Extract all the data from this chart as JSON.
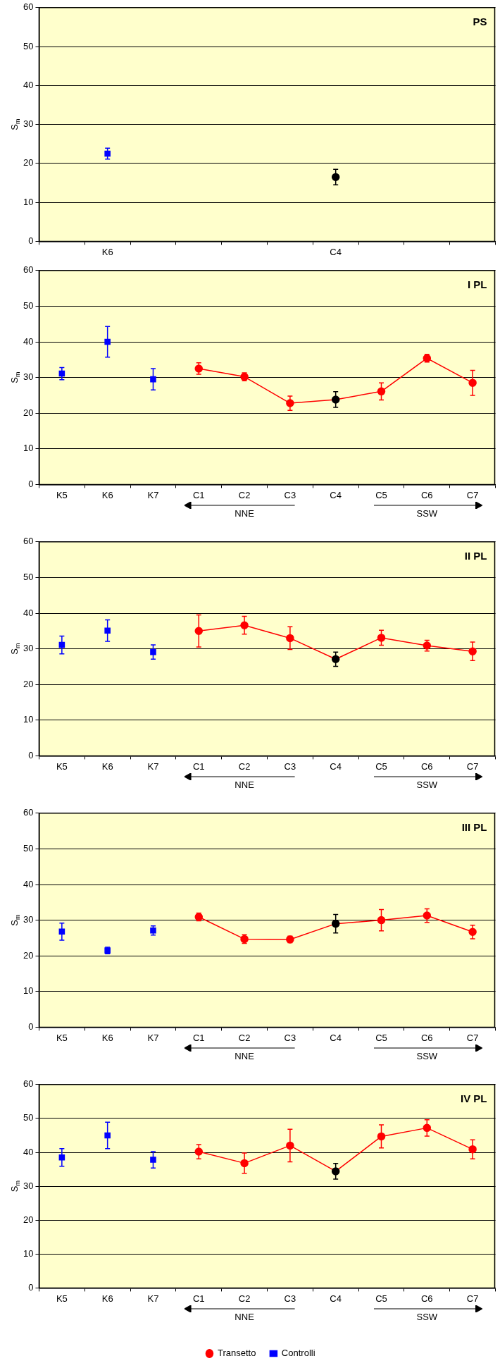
{
  "chart_data": [
    {
      "type": "scatter",
      "title": "PS",
      "ylabel": "S$_{m}$",
      "categories": [
        null,
        "K6",
        null,
        null,
        null,
        null,
        "C4",
        null,
        null,
        null
      ],
      "ylim": [
        0,
        60
      ],
      "yticks": [
        0,
        10,
        20,
        30,
        40,
        50,
        60
      ],
      "grid": "y",
      "series": [
        {
          "marker": "square",
          "color": "#0000ff",
          "values": [
            null,
            22.5,
            null,
            null,
            null,
            null,
            null,
            null,
            null,
            null
          ],
          "errors": [
            null,
            1.4,
            null,
            null,
            null,
            null,
            null,
            null,
            null,
            null
          ]
        },
        {
          "marker": "circle",
          "color": "#000000",
          "values": [
            null,
            null,
            null,
            null,
            null,
            null,
            16.5,
            null,
            null,
            null
          ],
          "errors": [
            null,
            null,
            null,
            null,
            null,
            null,
            2,
            null,
            null,
            null
          ]
        }
      ]
    },
    {
      "type": "line",
      "title": "I PL",
      "ylabel": "S$_{m}$",
      "categories": [
        "K5",
        "K6",
        "K7",
        "C1",
        "C2",
        "C3",
        "C4",
        "C5",
        "C6",
        "C7"
      ],
      "ylim": [
        0,
        60
      ],
      "yticks": [
        0,
        10,
        20,
        30,
        40,
        50,
        60
      ],
      "grid": "y",
      "annotations": [
        "NNE",
        "SSW"
      ],
      "series": [
        {
          "type": "scatter",
          "marker": "square",
          "color": "#0000ff",
          "values": [
            31.1,
            40,
            29.5,
            null,
            null,
            null,
            null,
            null,
            null,
            null
          ],
          "errors": [
            1.7,
            4.3,
            3,
            null,
            null,
            null,
            null,
            null,
            null,
            null
          ]
        },
        {
          "marker": "circle",
          "line_style": "solid",
          "color": "#ff0000",
          "colors": [
            null,
            null,
            null,
            "#ff0000",
            "#ff0000",
            "#ff0000",
            "#000000",
            "#ff0000",
            "#ff0000",
            "#ff0000"
          ],
          "values": [
            null,
            null,
            null,
            32.5,
            30.2,
            22.8,
            23.8,
            26.1,
            35.4,
            28.5
          ],
          "errors": [
            null,
            null,
            null,
            1.6,
            1.1,
            2,
            2.2,
            2.4,
            1.1,
            3.5
          ]
        }
      ]
    },
    {
      "type": "line",
      "title": "II PL",
      "ylabel": "S$_{m}$",
      "categories": [
        "K5",
        "K6",
        "K7",
        "C1",
        "C2",
        "C3",
        "C4",
        "C5",
        "C6",
        "C7"
      ],
      "ylim": [
        0,
        60
      ],
      "yticks": [
        0,
        10,
        20,
        30,
        40,
        50,
        60
      ],
      "grid": "y",
      "annotations": [
        "NNE",
        "SSW"
      ],
      "series": [
        {
          "type": "scatter",
          "marker": "square",
          "color": "#0000ff",
          "values": [
            31.1,
            35.1,
            29.1,
            null,
            null,
            null,
            null,
            null,
            null,
            null
          ],
          "errors": [
            2.5,
            3,
            2,
            null,
            null,
            null,
            null,
            null,
            null,
            null
          ]
        },
        {
          "marker": "circle",
          "line_style": "solid",
          "color": "#ff0000",
          "colors": [
            null,
            null,
            null,
            "#ff0000",
            "#ff0000",
            "#ff0000",
            "#000000",
            "#ff0000",
            "#ff0000",
            "#ff0000"
          ],
          "values": [
            null,
            null,
            null,
            35,
            36.6,
            33,
            27.1,
            33.1,
            30.9,
            29.3
          ],
          "errors": [
            null,
            null,
            null,
            4.5,
            2.5,
            3.2,
            2,
            2.1,
            1.5,
            2.6
          ]
        }
      ]
    },
    {
      "type": "line",
      "title": "III PL",
      "ylabel": "S$_{m}$",
      "categories": [
        "K5",
        "K6",
        "K7",
        "C1",
        "C2",
        "C3",
        "C4",
        "C5",
        "C6",
        "C7"
      ],
      "ylim": [
        0,
        60
      ],
      "yticks": [
        0,
        10,
        20,
        30,
        40,
        50,
        60
      ],
      "grid": "y",
      "annotations": [
        "NNE",
        "SSW"
      ],
      "series": [
        {
          "type": "scatter",
          "marker": "square",
          "color": "#0000ff",
          "values": [
            26.8,
            21.5,
            27.1,
            null,
            null,
            null,
            null,
            null,
            null,
            null
          ],
          "errors": [
            2.4,
            0.9,
            1.3,
            null,
            null,
            null,
            null,
            null,
            null,
            null
          ]
        },
        {
          "marker": "circle",
          "line_style": "solid",
          "color": "#ff0000",
          "colors": [
            null,
            null,
            null,
            "#ff0000",
            "#ff0000",
            "#ff0000",
            "#000000",
            "#ff0000",
            "#ff0000",
            "#ff0000"
          ],
          "values": [
            null,
            null,
            null,
            30.9,
            24.7,
            24.6,
            29,
            30,
            31.3,
            26.7
          ],
          "errors": [
            null,
            null,
            null,
            1.1,
            1.2,
            0.9,
            2.6,
            3,
            1.9,
            1.9
          ]
        }
      ]
    },
    {
      "type": "line",
      "title": "IV PL",
      "ylabel": "S$_{m}$",
      "categories": [
        "K5",
        "K6",
        "K7",
        "C1",
        "C2",
        "C3",
        "C4",
        "C5",
        "C6",
        "C7"
      ],
      "ylim": [
        0,
        60
      ],
      "yticks": [
        0,
        10,
        20,
        30,
        40,
        50,
        60
      ],
      "grid": "y",
      "legend": "bottom",
      "annotations": [
        "NNE",
        "SSW"
      ],
      "series": [
        {
          "name": "Transetto",
          "marker": "circle",
          "line_style": "solid",
          "color": "#ff0000",
          "colors": [
            null,
            null,
            null,
            "#ff0000",
            "#ff0000",
            "#ff0000",
            "#000000",
            "#ff0000",
            "#ff0000",
            "#ff0000"
          ],
          "values": [
            null,
            null,
            null,
            40.2,
            36.8,
            42,
            34.4,
            44.7,
            47.2,
            40.9
          ],
          "errors": [
            null,
            null,
            null,
            2.1,
            3,
            4.8,
            2.3,
            3.4,
            2.4,
            2.8
          ]
        },
        {
          "type": "scatter",
          "name": "Controlli",
          "marker": "square",
          "color": "#0000ff",
          "values": [
            38.5,
            45,
            37.8,
            null,
            null,
            null,
            null,
            null,
            null,
            null
          ],
          "errors": [
            2.6,
            3.9,
            2.4,
            null,
            null,
            null,
            null,
            null,
            null,
            null
          ]
        }
      ]
    }
  ]
}
